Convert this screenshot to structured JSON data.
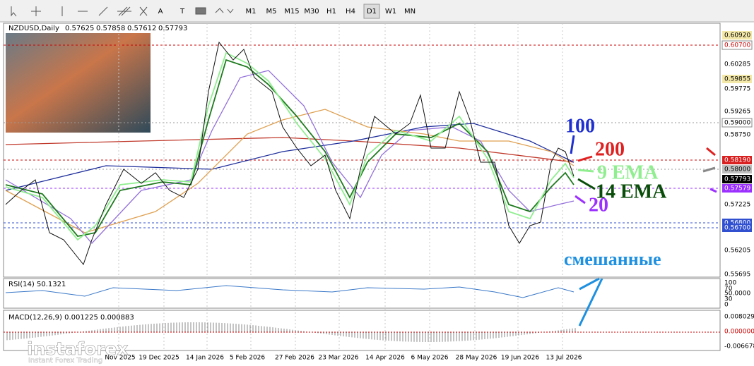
{
  "toolbar": {
    "tools": [
      "A",
      "T"
    ],
    "timeframes": [
      "M1",
      "M5",
      "M15",
      "M30",
      "H1",
      "H4",
      "D1",
      "W1",
      "MN"
    ]
  },
  "chart_header": {
    "symbol": "NZDUSD,Daily",
    "quote": [
      "0.57625",
      "0.57858",
      "0.57612",
      "0.57793"
    ]
  },
  "price_axis": [
    "0.60920",
    "0.60700",
    "0.60285",
    "0.59855",
    "0.59775",
    "0.59265",
    "0.59000",
    "0.58750",
    "0.58190",
    "0.58000",
    "0.57793",
    "0.57579",
    "0.57225",
    "0.56800",
    "0.56700",
    "0.56205",
    "0.55695"
  ],
  "time_axis": [
    "Nov 2025",
    "19 Dec 2025",
    "14 Jan 2026",
    "5 Feb 2026",
    "27 Feb 2026",
    "23 Mar 2026",
    "14 Apr 2026",
    "6 May 2026",
    "28 May 2026",
    "19 Jun 2026",
    "13 Jul 2026"
  ],
  "rsi": {
    "label": "RSI(14) 50.1321",
    "scale": [
      "100",
      "70",
      "50.0000",
      "30",
      "0"
    ]
  },
  "macd": {
    "label": "MACD(12,26,9) 0.001225 0.000883",
    "scale": [
      "0.008029",
      "0.000000",
      "-0.006678"
    ]
  },
  "annotations": {
    "ma100": "100",
    "ma200": "200",
    "ema9": "9 EMA",
    "ema14": "14 EMA",
    "ma20": "20",
    "mixed": "смешанные"
  },
  "watermark": {
    "brand": "instaforex",
    "tagline": "Instant Forex Trading"
  }
}
